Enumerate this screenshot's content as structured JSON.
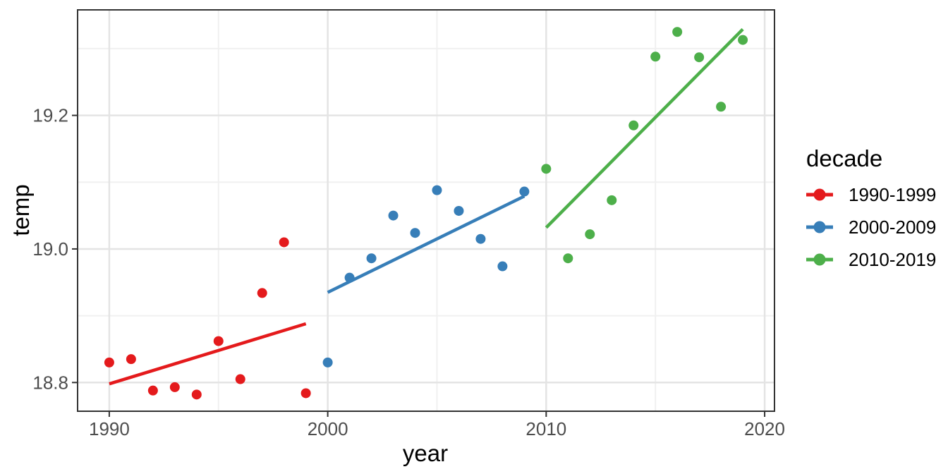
{
  "chart_data": {
    "type": "scatter",
    "title": "",
    "xlabel": "year",
    "ylabel": "temp",
    "xlim": [
      1988.55,
      2020.45
    ],
    "ylim": [
      18.757,
      19.358
    ],
    "x_ticks": [
      1990,
      2000,
      2010,
      2020
    ],
    "x_tick_labels": [
      "1990",
      "2000",
      "2010",
      "2020"
    ],
    "x_minor_gridlines": [
      1995,
      2005,
      2015
    ],
    "y_ticks": [
      18.8,
      19.0,
      19.2
    ],
    "y_tick_labels": [
      "18.8",
      "19.0",
      "19.2"
    ],
    "y_minor_gridlines": [
      18.9,
      19.1,
      19.3
    ],
    "grid": "major+minor",
    "legend_position": "right",
    "legend_title": "decade",
    "style": {
      "background": "#FFFFFF",
      "panel_background": "#FFFFFF",
      "grid_major_color": "#E4E4E4",
      "grid_minor_color": "#F0F0F0",
      "panel_border_color": "#333333",
      "tick_color": "#333333",
      "tick_label_color": "#4D4D4D",
      "axis_title_color": "#000000"
    },
    "series": [
      {
        "name": "1990-1999",
        "color": "#E41A1C",
        "points": [
          [
            1990,
            18.83
          ],
          [
            1991,
            18.835
          ],
          [
            1992,
            18.788
          ],
          [
            1993,
            18.793
          ],
          [
            1994,
            18.782
          ],
          [
            1995,
            18.862
          ],
          [
            1996,
            18.805
          ],
          [
            1997,
            18.934
          ],
          [
            1998,
            19.01
          ],
          [
            1999,
            18.784
          ]
        ],
        "trend": [
          [
            1990,
            18.798
          ],
          [
            1999,
            18.888
          ]
        ]
      },
      {
        "name": "2000-2009",
        "color": "#377EB8",
        "points": [
          [
            2000,
            18.83
          ],
          [
            2001,
            18.957
          ],
          [
            2002,
            18.986
          ],
          [
            2003,
            19.05
          ],
          [
            2004,
            19.024
          ],
          [
            2005,
            19.088
          ],
          [
            2006,
            19.057
          ],
          [
            2007,
            19.015
          ],
          [
            2008,
            18.974
          ],
          [
            2009,
            19.086
          ]
        ],
        "trend": [
          [
            2000,
            18.935
          ],
          [
            2009,
            19.079
          ]
        ]
      },
      {
        "name": "2010-2019",
        "color": "#4DAF4A",
        "points": [
          [
            2010,
            19.12
          ],
          [
            2011,
            18.986
          ],
          [
            2012,
            19.022
          ],
          [
            2013,
            19.073
          ],
          [
            2014,
            19.185
          ],
          [
            2015,
            19.288
          ],
          [
            2016,
            19.325
          ],
          [
            2017,
            19.287
          ],
          [
            2018,
            19.213
          ],
          [
            2019,
            19.313
          ]
        ],
        "trend": [
          [
            2010,
            19.032
          ],
          [
            2019,
            19.329
          ]
        ]
      }
    ]
  }
}
